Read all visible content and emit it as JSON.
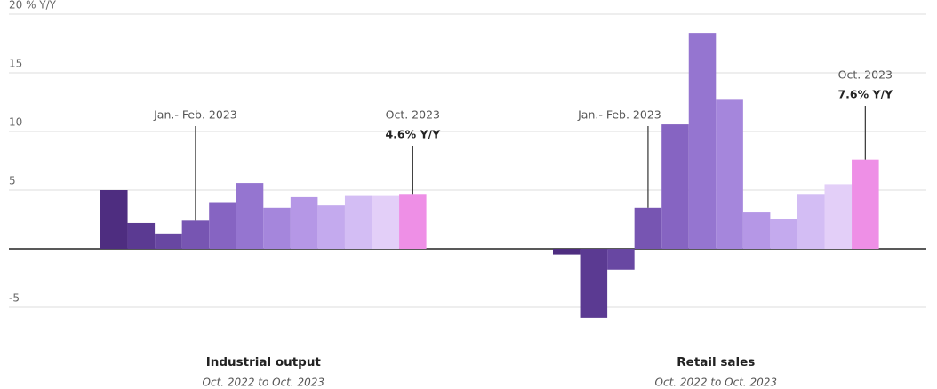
{
  "chart_data": {
    "type": "bar",
    "ylim": [
      -7,
      20.5
    ],
    "yticks": [
      {
        "value": 20,
        "label": "20 % Y/Y"
      },
      15,
      10,
      5,
      0,
      -5
    ],
    "grid": true,
    "colors": [
      "#4e2d80",
      "#5b3a92",
      "#6847a2",
      "#7755b2",
      "#8664c2",
      "#9575d0",
      "#a586dc",
      "#b597e6",
      "#c4aaee",
      "#d3bdf4",
      "#e3cff8",
      "#ee8fe6"
    ],
    "groups": [
      {
        "name": "Industrial output",
        "subtitle": "Oct. 2022 to Oct. 2023",
        "categories": [
          null,
          null,
          null,
          null,
          null,
          null,
          null,
          null,
          null,
          null,
          null,
          null
        ],
        "values": [
          5.0,
          2.2,
          1.3,
          2.4,
          3.9,
          5.6,
          3.5,
          4.4,
          3.7,
          4.5,
          4.5,
          4.6
        ],
        "value_labels": [
          null,
          null,
          null,
          null,
          null,
          null,
          null,
          null,
          null,
          null,
          null,
          "4.6% Y/Y"
        ],
        "annotations": [
          {
            "index": 3,
            "text": "Jan.- Feb. 2023"
          },
          {
            "index": 11,
            "text": "Oct. 2023"
          }
        ]
      },
      {
        "name": "Retail sales",
        "subtitle": "Oct. 2022 to Oct. 2023",
        "categories": [
          null,
          null,
          null,
          null,
          null,
          null,
          null,
          null,
          null,
          null,
          null,
          null
        ],
        "values": [
          -0.5,
          -5.9,
          -1.8,
          3.5,
          10.6,
          18.4,
          12.7,
          3.1,
          2.5,
          4.6,
          5.5,
          7.6
        ],
        "value_labels": [
          null,
          null,
          null,
          null,
          null,
          null,
          null,
          null,
          null,
          null,
          null,
          "7.6% Y/Y"
        ],
        "annotations": [
          {
            "index": 3,
            "text": "Jan.- Feb. 2023"
          },
          {
            "index": 11,
            "text": "Oct. 2023"
          }
        ]
      }
    ]
  }
}
